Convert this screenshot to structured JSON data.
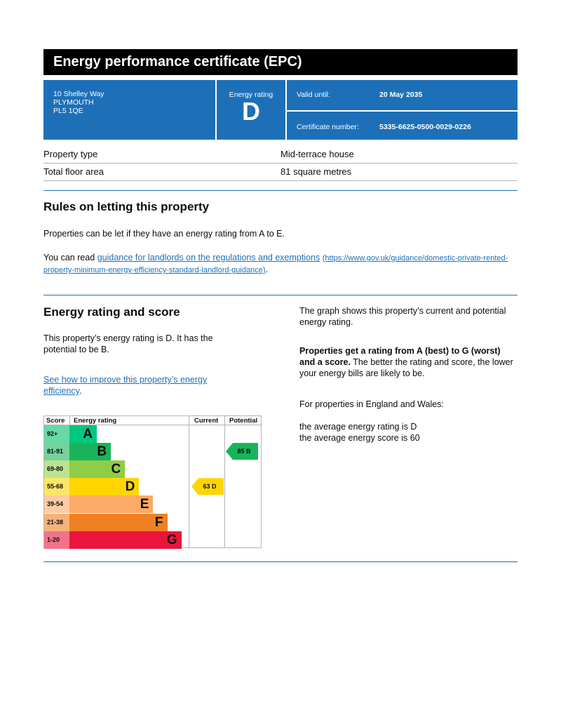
{
  "title": "Energy performance certificate (EPC)",
  "address": [
    "10 Shelley Way",
    "PLYMOUTH",
    "PL5 1QE"
  ],
  "rating": {
    "label": "Energy rating",
    "value": "D"
  },
  "valid": {
    "label": "Valid until:",
    "value": "20 May 2035"
  },
  "certificate": {
    "label": "Certificate number:",
    "value": "5335-6625-0500-0029-0226"
  },
  "property": [
    {
      "label": "Property type",
      "value": "Mid-terrace house"
    },
    {
      "label": "Total floor area",
      "value": "81 square metres"
    }
  ],
  "rules": {
    "heading": "Rules on letting this property",
    "p1": "Properties can be let if they have an energy rating from A to E.",
    "p2_prefix": "You can read ",
    "link": "guidance for landlords on the regulations and exemptions",
    "url": "(https://www.gov.uk/guidance/domestic-private-rented-property-minimum-energy-efficiency-standard-landlord-guidance)",
    "p2_suffix": "."
  },
  "score_section": {
    "heading": "Energy rating and score",
    "p1": "This property’s energy rating is D. It has the potential to be B.",
    "link": "See how to improve this property’s energy efficiency",
    "link_suffix": ".",
    "r1": "The graph shows this property’s current and potential energy rating.",
    "r2_bold": "Properties get a rating from A (best) to G (worst) and a score.",
    "r2_rest": " The better the rating and score, the lower your energy bills are likely to be.",
    "r3": "For properties in England and Wales:",
    "r4": "the average energy rating is D",
    "r5": "the average energy score is 60"
  },
  "chart_data": {
    "type": "table",
    "headers": [
      "Score",
      "Energy rating",
      "Current",
      "Potential"
    ],
    "bands": [
      {
        "letter": "A",
        "range": "92+",
        "color": "#00c781",
        "tint": "#66d9a6"
      },
      {
        "letter": "B",
        "range": "81-91",
        "color": "#19b459",
        "tint": "#75d29b"
      },
      {
        "letter": "C",
        "range": "69-80",
        "color": "#8dce46",
        "tint": "#bbe290"
      },
      {
        "letter": "D",
        "range": "55-68",
        "color": "#ffd500",
        "tint": "#ffe566"
      },
      {
        "letter": "E",
        "range": "39-54",
        "color": "#fcaa65",
        "tint": "#fdcca3"
      },
      {
        "letter": "F",
        "range": "21-38",
        "color": "#ef8023",
        "tint": "#f5b37b"
      },
      {
        "letter": "G",
        "range": "1-20",
        "color": "#e9153b",
        "tint": "#f27389"
      }
    ],
    "current": {
      "score": 63,
      "band": "D",
      "label": "63  D"
    },
    "potential": {
      "score": 85,
      "band": "B",
      "label": "85  B"
    }
  }
}
